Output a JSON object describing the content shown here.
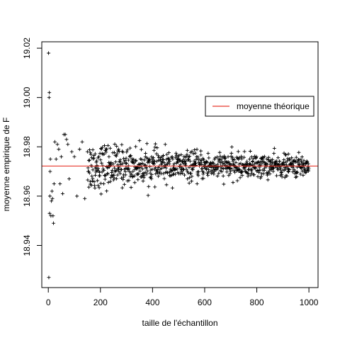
{
  "chart_data": {
    "type": "scatter",
    "title": "",
    "xlabel": "taille de l'échantillon",
    "ylabel": "moyenne empirique de F",
    "xlim": [
      -25,
      1035
    ],
    "ylim": [
      18.9229,
      19.0226
    ],
    "x_ticks": [
      0,
      200,
      400,
      600,
      800,
      1000
    ],
    "x_tick_labels": [
      "0",
      "200",
      "400",
      "600",
      "800",
      "1000"
    ],
    "y_ticks": [
      18.94,
      18.96,
      18.98,
      19.0,
      19.02
    ],
    "y_tick_labels": [
      "18.94",
      "18.96",
      "18.98",
      "19.00",
      "19.02"
    ],
    "grid": false,
    "legend_position": "top-right",
    "marker": "+",
    "series": [
      {
        "x_start": 1,
        "x_end": 1000,
        "marker_color": "#000000",
        "first_points": [
          [
            1,
            19.018
          ],
          [
            2,
            18.927
          ],
          [
            3,
            19.0
          ],
          [
            4,
            19.002
          ],
          [
            5,
            18.953
          ],
          [
            6,
            18.96
          ],
          [
            7,
            18.97
          ],
          [
            8,
            18.975
          ],
          [
            10,
            18.952
          ],
          [
            12,
            18.958
          ],
          [
            14,
            18.962
          ],
          [
            16,
            18.959
          ],
          [
            18,
            18.952
          ],
          [
            20,
            18.949
          ],
          [
            22,
            18.965
          ],
          [
            25,
            18.982
          ],
          [
            30,
            18.975
          ],
          [
            35,
            18.981
          ],
          [
            40,
            18.979
          ],
          [
            45,
            18.965
          ],
          [
            50,
            18.976
          ],
          [
            55,
            18.961
          ],
          [
            60,
            18.985
          ],
          [
            65,
            18.985
          ],
          [
            70,
            18.983
          ],
          [
            75,
            18.981
          ],
          [
            80,
            18.967
          ],
          [
            90,
            18.978
          ],
          [
            100,
            18.976
          ],
          [
            110,
            18.96
          ],
          [
            120,
            18.979
          ],
          [
            130,
            18.982
          ],
          [
            140,
            18.959
          ],
          [
            150,
            18.978
          ]
        ]
      },
      {
        "name": "moyenne théorique",
        "type": "hline",
        "y": 18.9722,
        "color": "#e8392e"
      }
    ],
    "legend": {
      "entries": [
        "moyenne théorique"
      ],
      "line_color": "#e8392e"
    }
  }
}
